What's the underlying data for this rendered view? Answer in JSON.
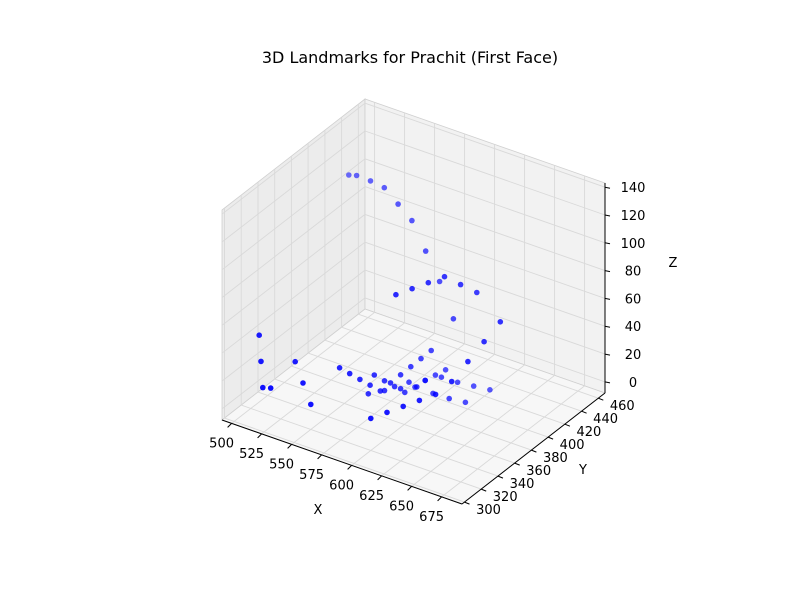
{
  "chart_data": {
    "type": "scatter",
    "title": "3D Landmarks for Prachit (First Face)",
    "xlabel": "X",
    "ylabel": "Y",
    "zlabel": "Z",
    "xlim": [
      492,
      692
    ],
    "ylim": [
      297,
      468
    ],
    "zlim": [
      -8,
      143
    ],
    "x_ticks": [
      500,
      525,
      550,
      575,
      600,
      625,
      650,
      675
    ],
    "y_ticks": [
      300,
      320,
      340,
      360,
      380,
      400,
      420,
      440,
      460
    ],
    "z_ticks": [
      0,
      20,
      40,
      60,
      80,
      100,
      120,
      140
    ],
    "grid": true,
    "marker_color": "#0000ff",
    "pane_color": "#f2f2f2",
    "grid_color": "#d9d9d9",
    "series": [
      {
        "x": [
          505,
          515,
          530,
          545,
          560,
          575,
          590,
          605,
          620,
          500,
          505,
          510,
          520,
          530,
          540,
          550,
          600,
          610,
          620,
          630,
          640,
          650,
          660,
          670,
          680,
          560,
          565,
          570,
          575,
          580,
          585,
          590,
          595,
          600,
          605,
          575,
          580,
          585,
          590,
          595,
          600,
          605,
          610,
          570,
          580,
          590,
          600,
          610,
          620,
          630,
          590,
          600,
          610,
          620,
          630,
          640,
          600,
          610,
          620,
          630,
          640,
          650
        ],
        "y": [
          430,
          425,
          420,
          415,
          410,
          405,
          400,
          395,
          390,
          330,
          325,
          320,
          315,
          330,
          325,
          320,
          320,
          325,
          330,
          335,
          340,
          345,
          350,
          355,
          360,
          340,
          345,
          350,
          355,
          360,
          365,
          370,
          375,
          380,
          385,
          360,
          365,
          370,
          375,
          380,
          385,
          390,
          395,
          360,
          365,
          370,
          375,
          380,
          385,
          390,
          380,
          385,
          390,
          395,
          400,
          405,
          350,
          355,
          360,
          365,
          370,
          375
        ],
        "z": [
          110,
          115,
          118,
          120,
          115,
          110,
          95,
          80,
          60,
          40,
          25,
          10,
          15,
          30,
          20,
          10,
          15,
          20,
          25,
          30,
          35,
          45,
          60,
          75,
          90,
          30,
          25,
          20,
          15,
          10,
          15,
          20,
          25,
          30,
          35,
          20,
          15,
          10,
          5,
          8,
          12,
          15,
          18,
          5,
          8,
          10,
          12,
          8,
          5,
          3,
          10,
          12,
          15,
          12,
          10,
          8,
          90,
          95,
          100,
          105,
          100,
          95
        ]
      }
    ]
  }
}
